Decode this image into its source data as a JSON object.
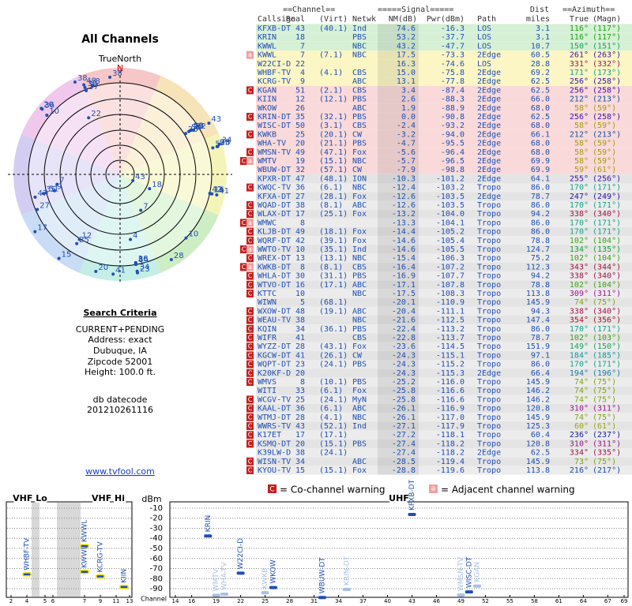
{
  "left": {
    "title": "All Channels",
    "north": "TrueNorth",
    "n": "N",
    "criteria_title": "Search Criteria",
    "criteria": [
      "CURRENT+PENDING",
      "Address: exact",
      "Dubuque, IA",
      "Zipcode 52001",
      "Height: 100.0 ft."
    ],
    "datecode_label": "db datecode",
    "datecode": "201210261116",
    "link": "www.tvfool.com"
  },
  "table": {
    "header": {
      "channel": "==Channel==",
      "signal": "=====Signal=====",
      "dist": "Dist",
      "azimuth": "==Azimuth==",
      "callsign": "Callsign",
      "real": "Real",
      "virt": "(Virt)",
      "netwk": "Netwk",
      "nm": "NM(dB)",
      "pwr": "Pwr(dBm)",
      "path": "Path",
      "miles": "miles",
      "true": "True",
      "magn": "(Magn)"
    },
    "rows": [
      {
        "cs": "KFXB-DT",
        "real": "43",
        "virt": "(40.1)",
        "net": "Ind",
        "nm": "74.6",
        "pwr": "-16.3",
        "path": "LOS",
        "dist": "3.1",
        "az": "116°",
        "mag": "(117°)"
      },
      {
        "cs": "KRIN",
        "real": "18",
        "net": "PBS",
        "nm": "53.2",
        "pwr": "-37.7",
        "path": "LOS",
        "dist": "3.1",
        "az": "116°",
        "mag": "(117°)"
      },
      {
        "cs": "KWWL",
        "real": "7",
        "net": "NBC",
        "nm": "43.2",
        "pwr": "-47.7",
        "path": "LOS",
        "dist": "10.7",
        "az": "150°",
        "mag": "(151°)"
      },
      {
        "warn": [
          "a"
        ],
        "cs": "KWWL",
        "real": "7",
        "virt": "(7.1)",
        "net": "NBC",
        "nm": "17.5",
        "pwr": "-73.3",
        "path": "2Edge",
        "dist": "60.5",
        "az": "261°",
        "mag": "(263°)"
      },
      {
        "cs": "W22CI-D",
        "real": "22",
        "nm": "16.3",
        "pwr": "-74.6",
        "path": "LOS",
        "dist": "28.8",
        "az": "331°",
        "mag": "(332°)"
      },
      {
        "cs": "WHBF-TV",
        "real": "4",
        "virt": "(4.1)",
        "net": "CBS",
        "nm": "15.0",
        "pwr": "-75.8",
        "path": "2Edge",
        "dist": "69.2",
        "az": "171°",
        "mag": "(173°)"
      },
      {
        "cs": "KCRG-TV",
        "real": "9",
        "net": "ABC",
        "nm": "13.1",
        "pwr": "-77.8",
        "path": "2Edge",
        "dist": "62.5",
        "az": "256°",
        "mag": "(258°)"
      },
      {
        "warn": [
          "C"
        ],
        "cs": "KGAN",
        "real": "51",
        "virt": "(2.1)",
        "net": "CBS",
        "nm": "3.4",
        "pwr": "-87.4",
        "path": "2Edge",
        "dist": "62.5",
        "az": "256°",
        "mag": "(258°)"
      },
      {
        "cs": "KIIN",
        "real": "12",
        "virt": "(12.1)",
        "net": "PBS",
        "nm": "2.6",
        "pwr": "-88.3",
        "path": "2Edge",
        "dist": "66.0",
        "az": "212°",
        "mag": "(213°)"
      },
      {
        "cs": "WKOW",
        "real": "26",
        "net": "ABC",
        "nm": "1.9",
        "pwr": "-88.9",
        "path": "2Edge",
        "dist": "68.0",
        "az": "58°",
        "mag": "(59°)"
      },
      {
        "warn": [
          "C"
        ],
        "cs": "KRIN-DT",
        "real": "35",
        "virt": "(32.1)",
        "net": "PBS",
        "nm": "0.0",
        "pwr": "-90.8",
        "path": "2Edge",
        "dist": "62.5",
        "az": "256°",
        "mag": "(258°)"
      },
      {
        "cs": "WISC-DT",
        "real": "50",
        "virt": "(3.1)",
        "net": "CBS",
        "nm": "-2.4",
        "pwr": "-93.2",
        "path": "2Edge",
        "dist": "68.0",
        "az": "58°",
        "mag": "(59°)"
      },
      {
        "warn": [
          "C"
        ],
        "cs": "KWKB",
        "real": "25",
        "virt": "(20.1)",
        "net": "CW",
        "nm": "-3.2",
        "pwr": "-94.0",
        "path": "2Edge",
        "dist": "66.1",
        "az": "212°",
        "mag": "(213°)"
      },
      {
        "cs": "WHA-TV",
        "real": "20",
        "virt": "(21.1)",
        "net": "PBS",
        "nm": "-4.7",
        "pwr": "-95.5",
        "path": "2Edge",
        "dist": "68.0",
        "az": "58°",
        "mag": "(59°)"
      },
      {
        "warn": [
          "C"
        ],
        "cs": "WMSN-TV",
        "real": "49",
        "virt": "(47.1)",
        "net": "Fox",
        "nm": "-5.6",
        "pwr": "-96.4",
        "path": "2Edge",
        "dist": "68.0",
        "az": "58°",
        "mag": "(59°)"
      },
      {
        "warn": [
          "C",
          "a"
        ],
        "cs": "WMTV",
        "real": "19",
        "virt": "(15.1)",
        "net": "NBC",
        "nm": "-5.7",
        "pwr": "-96.5",
        "path": "2Edge",
        "dist": "69.9",
        "az": "58°",
        "mag": "(59°)"
      },
      {
        "cs": "WBUW-DT",
        "real": "32",
        "virt": "(57.1)",
        "net": "CW",
        "nm": "-7.9",
        "pwr": "-98.8",
        "path": "2Edge",
        "dist": "69.9",
        "az": "59°",
        "mag": "(61°)"
      },
      {
        "cs": "KPXR-DT",
        "real": "47",
        "virt": "(48.1)",
        "net": "ION",
        "nm": "-10.3",
        "pwr": "-101.2",
        "path": "2Edge",
        "dist": "64.1",
        "az": "255°",
        "mag": "(256°)"
      },
      {
        "warn": [
          "C"
        ],
        "cs": "KWQC-TV",
        "real": "36",
        "virt": "(6.1)",
        "net": "NBC",
        "nm": "-12.4",
        "pwr": "-103.2",
        "path": "Tropo",
        "dist": "86.0",
        "az": "170°",
        "mag": "(171°)"
      },
      {
        "cs": "KFXA-DT",
        "real": "27",
        "virt": "(28.1)",
        "net": "Fox",
        "nm": "-12.6",
        "pwr": "-103.5",
        "path": "2Edge",
        "dist": "78.7",
        "az": "247°",
        "mag": "(249°)"
      },
      {
        "warn": [
          "C"
        ],
        "cs": "WQAD-DT",
        "real": "38",
        "virt": "(8.1)",
        "net": "ABC",
        "nm": "-12.6",
        "pwr": "-103.5",
        "path": "Tropo",
        "dist": "86.0",
        "az": "170°",
        "mag": "(171°)"
      },
      {
        "warn": [
          "C"
        ],
        "cs": "WLAX-DT",
        "real": "17",
        "virt": "(25.1)",
        "net": "Fox",
        "nm": "-13.2",
        "pwr": "-104.0",
        "path": "Tropo",
        "dist": "94.2",
        "az": "338°",
        "mag": "(340°)"
      },
      {
        "warn": [
          "C",
          "a"
        ],
        "cs": "WMWC",
        "real": "8",
        "nm": "-13.3",
        "pwr": "-104.1",
        "path": "Tropo",
        "dist": "86.0",
        "az": "170°",
        "mag": "(171°)"
      },
      {
        "warn": [
          "C"
        ],
        "cs": "KLJB-DT",
        "real": "49",
        "virt": "(18.1)",
        "net": "Fox",
        "nm": "-14.4",
        "pwr": "-105.2",
        "path": "Tropo",
        "dist": "86.0",
        "az": "170°",
        "mag": "(171°)"
      },
      {
        "warn": [
          "C"
        ],
        "cs": "WQRF-DT",
        "real": "42",
        "virt": "(39.1)",
        "net": "Fox",
        "nm": "-14.6",
        "pwr": "-105.4",
        "path": "Tropo",
        "dist": "78.8",
        "az": "102°",
        "mag": "(104°)"
      },
      {
        "warn": [
          "C",
          "a"
        ],
        "cs": "WWTO-TV",
        "real": "10",
        "virt": "(35.1)",
        "net": "Ind",
        "nm": "-14.6",
        "pwr": "-105.5",
        "path": "Tropo",
        "dist": "124.7",
        "az": "134°",
        "mag": "(135°)"
      },
      {
        "warn": [
          "C"
        ],
        "cs": "WREX-DT",
        "real": "13",
        "virt": "(13.1)",
        "net": "NBC",
        "nm": "-15.4",
        "pwr": "-106.3",
        "path": "Tropo",
        "dist": "75.2",
        "az": "102°",
        "mag": "(104°)"
      },
      {
        "warn": [
          "C",
          "a"
        ],
        "cs": "KWKB-DT",
        "real": "8",
        "virt": "(8.1)",
        "net": "CBS",
        "nm": "-16.4",
        "pwr": "-107.2",
        "path": "Tropo",
        "dist": "112.3",
        "az": "343°",
        "mag": "(344°)"
      },
      {
        "warn": [
          "C"
        ],
        "cs": "WHLA-DT",
        "real": "30",
        "virt": "(31.1)",
        "net": "PBS",
        "nm": "-16.9",
        "pwr": "-107.7",
        "path": "Tropo",
        "dist": "94.2",
        "az": "338°",
        "mag": "(340°)"
      },
      {
        "warn": [
          "C"
        ],
        "cs": "WTVO-DT",
        "real": "16",
        "virt": "(17.1)",
        "net": "ABC",
        "nm": "-17.1",
        "pwr": "-107.8",
        "path": "Tropo",
        "dist": "78.8",
        "az": "102°",
        "mag": "(104°)"
      },
      {
        "warn": [
          "C"
        ],
        "cs": "KTTC",
        "real": "10",
        "net": "NBC",
        "nm": "-17.5",
        "pwr": "-108.3",
        "path": "Tropo",
        "dist": "113.8",
        "az": "309°",
        "mag": "(311°)"
      },
      {
        "cs": "WIWN",
        "real": "5",
        "virt": "(68.1)",
        "nm": "-20.1",
        "pwr": "-110.9",
        "path": "Tropo",
        "dist": "145.9",
        "az": "74°",
        "mag": "(75°)"
      },
      {
        "warn": [
          "C"
        ],
        "cs": "WXOW-DT",
        "real": "48",
        "virt": "(19.1)",
        "net": "ABC",
        "nm": "-20.4",
        "pwr": "-111.1",
        "path": "Tropo",
        "dist": "94.3",
        "az": "338°",
        "mag": "(340°)"
      },
      {
        "warn": [
          "C"
        ],
        "cs": "WEAU-TV",
        "real": "38",
        "net": "NBC",
        "nm": "-21.6",
        "pwr": "-112.5",
        "path": "Tropo",
        "dist": "147.4",
        "az": "354°",
        "mag": "(356°)"
      },
      {
        "warn": [
          "C"
        ],
        "cs": "KQIN",
        "real": "34",
        "virt": "(36.1)",
        "net": "PBS",
        "nm": "-22.4",
        "pwr": "-113.2",
        "path": "Tropo",
        "dist": "86.0",
        "az": "170°",
        "mag": "(171°)"
      },
      {
        "warn": [
          "C"
        ],
        "cs": "WIFR",
        "real": "41",
        "net": "CBS",
        "nm": "-22.8",
        "pwr": "-113.7",
        "path": "Tropo",
        "dist": "78.7",
        "az": "102°",
        "mag": "(103°)"
      },
      {
        "warn": [
          "C"
        ],
        "cs": "WYZZ-DT",
        "real": "28",
        "virt": "(43.1)",
        "net": "Fox",
        "nm": "-23.6",
        "pwr": "-114.5",
        "path": "Tropo",
        "dist": "151.9",
        "az": "149°",
        "mag": "(150°)"
      },
      {
        "warn": [
          "C"
        ],
        "cs": "KGCW-DT",
        "real": "41",
        "virt": "(26.1)",
        "net": "CW",
        "nm": "-24.3",
        "pwr": "-115.1",
        "path": "Tropo",
        "dist": "97.1",
        "az": "184°",
        "mag": "(185°)"
      },
      {
        "warn": [
          "C"
        ],
        "cs": "WQPT-DT",
        "real": "23",
        "virt": "(24.1)",
        "net": "PBS",
        "nm": "-24.3",
        "pwr": "-115.2",
        "path": "Tropo",
        "dist": "86.0",
        "az": "170°",
        "mag": "(171°)"
      },
      {
        "warn": [
          "C"
        ],
        "cs": "K20KF-D",
        "real": "20",
        "nm": "-24.3",
        "pwr": "-115.3",
        "path": "2Edge",
        "dist": "66.4",
        "az": "194°",
        "mag": "(196°)"
      },
      {
        "warn": [
          "C"
        ],
        "cs": "WMVS",
        "real": "8",
        "virt": "(10.1)",
        "net": "PBS",
        "nm": "-25.2",
        "pwr": "-116.0",
        "path": "Tropo",
        "dist": "145.9",
        "az": "74°",
        "mag": "(75°)"
      },
      {
        "cs": "WITI",
        "real": "33",
        "virt": "(6.1)",
        "net": "Fox",
        "nm": "-25.8",
        "pwr": "-116.6",
        "path": "Tropo",
        "dist": "146.2",
        "az": "74°",
        "mag": "(75°)"
      },
      {
        "warn": [
          "C"
        ],
        "cs": "WCGV-TV",
        "real": "25",
        "virt": "(24.1)",
        "net": "MyN",
        "nm": "-25.8",
        "pwr": "-116.6",
        "path": "Tropo",
        "dist": "146.2",
        "az": "74°",
        "mag": "(75°)"
      },
      {
        "warn": [
          "C"
        ],
        "cs": "KAAL-DT",
        "real": "36",
        "virt": "(6.1)",
        "net": "ABC",
        "nm": "-26.1",
        "pwr": "-116.9",
        "path": "Tropo",
        "dist": "120.8",
        "az": "310°",
        "mag": "(311°)"
      },
      {
        "warn": [
          "C"
        ],
        "cs": "WTMJ-DT",
        "real": "28",
        "virt": "(4.1)",
        "net": "NBC",
        "nm": "-26.1",
        "pwr": "-117.0",
        "path": "Tropo",
        "dist": "145.9",
        "az": "74°",
        "mag": "(75°)"
      },
      {
        "warn": [
          "C"
        ],
        "cs": "WWRS-TV",
        "real": "43",
        "virt": "(52.1)",
        "net": "Ind",
        "nm": "-27.1",
        "pwr": "-117.9",
        "path": "Tropo",
        "dist": "125.3",
        "az": "60°",
        "mag": "(61°)"
      },
      {
        "warn": [
          "C"
        ],
        "cs": "K17ET",
        "real": "17",
        "virt": "(17.1)",
        "nm": "-27.2",
        "pwr": "-118.1",
        "path": "Tropo",
        "dist": "60.4",
        "az": "236°",
        "mag": "(237°)"
      },
      {
        "warn": [
          "C"
        ],
        "cs": "KSMQ-DT",
        "real": "20",
        "virt": "(15.1)",
        "net": "PBS",
        "nm": "-27.4",
        "pwr": "-118.2",
        "path": "Tropo",
        "dist": "120.8",
        "az": "310°",
        "mag": "(311°)"
      },
      {
        "cs": "K39LW-D",
        "real": "38",
        "virt": "(24.1)",
        "nm": "-27.4",
        "pwr": "-118.2",
        "path": "2Edge",
        "dist": "62.5",
        "az": "334°",
        "mag": "(335°)"
      },
      {
        "warn": [
          "C"
        ],
        "cs": "WISN-TV",
        "real": "34",
        "net": "ABC",
        "nm": "-28.5",
        "pwr": "-119.4",
        "path": "Tropo",
        "dist": "145.9",
        "az": "73°",
        "mag": "(75°)"
      },
      {
        "warn": [
          "C"
        ],
        "cs": "KYOU-TV",
        "real": "15",
        "virt": "(15.1)",
        "net": "Fox",
        "nm": "-28.8",
        "pwr": "-119.6",
        "path": "Tropo",
        "dist": "113.8",
        "az": "216°",
        "mag": "(217°)"
      }
    ]
  },
  "legend": {
    "c": "C",
    "co": "= Co-channel warning",
    "a": "a",
    "adj": "= Adjacent channel warning"
  },
  "spectrum": {
    "ylabel": "dBm",
    "xlabel": "Channel",
    "ylim": [
      -95,
      -5
    ],
    "yticks": [
      -10,
      -20,
      -30,
      -40,
      -50,
      -60,
      -70,
      -80,
      -90
    ],
    "bands": [
      {
        "name": "VHF Lo",
        "xticks": [
          2,
          4,
          5,
          6
        ]
      },
      {
        "name": "VHF Hi",
        "xticks": [
          7,
          9,
          11,
          13
        ]
      },
      {
        "name": "UHF",
        "xlim": [
          14,
          69
        ],
        "xticks": [
          14,
          16,
          19,
          22,
          25,
          28,
          31,
          34,
          37,
          40,
          43,
          46,
          49,
          52,
          55,
          58,
          61,
          64,
          67,
          69
        ]
      }
    ],
    "stations": [
      {
        "callsign": "WHBF-TV",
        "channel": 4,
        "pwr": -75.8,
        "color": "#1f4fb4"
      },
      {
        "callsign": "KWWL",
        "channel": 7,
        "pwr": -47.7,
        "color": "#1f4fb4"
      },
      {
        "callsign": "KWWL",
        "channel": 7,
        "pwr": -73.3,
        "color": "#1f4fb4"
      },
      {
        "callsign": "KCRG-TV",
        "channel": 9,
        "pwr": -77.8,
        "color": "#1f4fb4"
      },
      {
        "callsign": "KIIN",
        "channel": 12,
        "pwr": -88.3,
        "color": "#1f4fb4"
      },
      {
        "callsign": "KRIN",
        "channel": 18,
        "pwr": -37.7,
        "color": "#1f4fb4"
      },
      {
        "callsign": "WMTV",
        "channel": 19,
        "pwr": -96.5,
        "color": "#a8c0e6"
      },
      {
        "callsign": "WHA-TV",
        "channel": 20,
        "pwr": -95.5,
        "color": "#a8c0e6"
      },
      {
        "callsign": "W22CI-D",
        "channel": 22,
        "pwr": -74.6,
        "color": "#1f4fb4"
      },
      {
        "callsign": "KWKB",
        "channel": 25,
        "pwr": -94.0,
        "color": "#a8c0e6"
      },
      {
        "callsign": "WKOW",
        "channel": 26,
        "pwr": -88.9,
        "color": "#1f4fb4"
      },
      {
        "callsign": "WBUW-DT",
        "channel": 32,
        "pwr": -98.8,
        "color": "#1f4fb4"
      },
      {
        "callsign": "KRIN-DT",
        "channel": 35,
        "pwr": -90.8,
        "color": "#a8c0e6"
      },
      {
        "callsign": "KFXB-DT",
        "channel": 43,
        "pwr": -16.3,
        "color": "#1f4fb4"
      },
      {
        "callsign": "WMSN-TV",
        "channel": 49,
        "pwr": -96.4,
        "color": "#a8c0e6"
      },
      {
        "callsign": "WISC-DT",
        "channel": 50,
        "pwr": -93.2,
        "color": "#1f4fb4"
      },
      {
        "callsign": "KGAN",
        "channel": 51,
        "pwr": -87.4,
        "color": "#a8c0e6"
      }
    ]
  }
}
